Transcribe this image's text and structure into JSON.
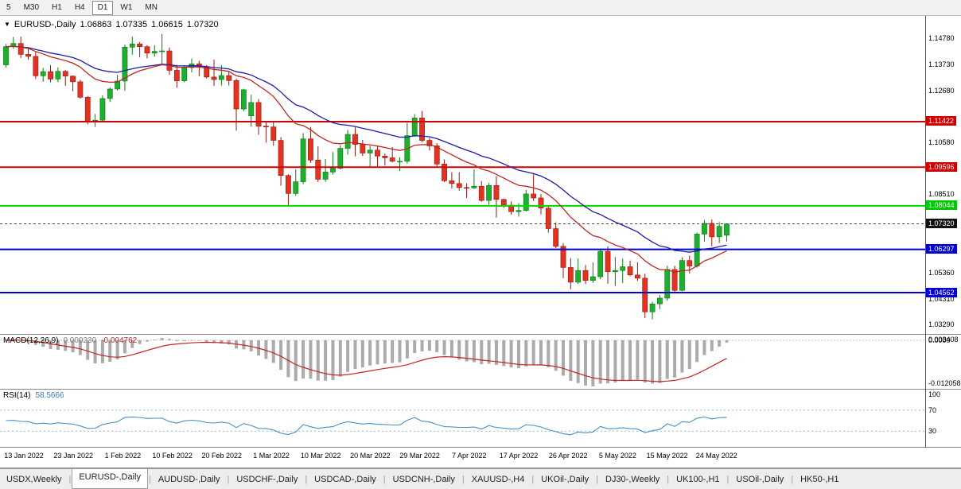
{
  "toolbar": {
    "timeframes": [
      {
        "label": "5",
        "active": false
      },
      {
        "label": "M30",
        "active": false
      },
      {
        "label": "H1",
        "active": false
      },
      {
        "label": "H4",
        "active": false
      },
      {
        "label": "D1",
        "active": true
      },
      {
        "label": "W1",
        "active": false
      },
      {
        "label": "MN",
        "active": false
      }
    ]
  },
  "chart_header": {
    "symbol": "EURUSD-,Daily",
    "open": "1.06863",
    "high": "1.07335",
    "low": "1.06615",
    "close": "1.07320"
  },
  "colors": {
    "up_fill": "#1fae2d",
    "up_stroke": "#0b7a14",
    "down_fill": "#e23222",
    "down_stroke": "#9a170b",
    "ma_fast": "#c22620",
    "ma_slow": "#1c1ca8",
    "macd_hist": "#ababab",
    "macd_signal": "#c22620",
    "rsi_line": "#4a8fc6",
    "rsi_levels": "#9db8d2",
    "current_price_line": "#444444"
  },
  "price_axis": {
    "ticks": [
      {
        "label": "1.14780",
        "price": 1.1478
      },
      {
        "label": "1.13730",
        "price": 1.1373
      },
      {
        "label": "1.12680",
        "price": 1.1268
      },
      {
        "label": "1.10580",
        "price": 1.1058
      },
      {
        "label": "1.08510",
        "price": 1.0851
      },
      {
        "label": "1.05360",
        "price": 1.0536
      },
      {
        "label": "1.04310",
        "price": 1.0431
      },
      {
        "label": "1.03290",
        "price": 1.0329
      }
    ],
    "badges": [
      {
        "label": "1.11422",
        "price": 1.11422,
        "color": "#d10000"
      },
      {
        "label": "1.09596",
        "price": 1.09596,
        "color": "#d10000"
      },
      {
        "label": "1.08044",
        "price": 1.08044,
        "color": "#00c800"
      },
      {
        "label": "1.07320",
        "price": 1.0732,
        "color": "#101010"
      },
      {
        "label": "1.06297",
        "price": 1.06297,
        "color": "#0000d0"
      },
      {
        "label": "1.04562",
        "price": 1.04562,
        "color": "#0000d0"
      }
    ]
  },
  "macd": {
    "name": "MACD(12,26,9)",
    "value_main": "0.000230",
    "value_signal": "-0.004762",
    "axis_top": "0.003408",
    "axis_zero": "0.0000",
    "axis_bottom": "-0.012058"
  },
  "rsi": {
    "name": "RSI(14)",
    "value": "58.5666",
    "axis": [
      {
        "label": "100",
        "value": 100
      },
      {
        "label": "70",
        "value": 70
      },
      {
        "label": "30",
        "value": 30
      }
    ]
  },
  "tabs": [
    {
      "label": "USDX,Weekly",
      "active": false
    },
    {
      "label": "EURUSD-,Daily",
      "active": true
    },
    {
      "label": "AUDUSD-,Daily",
      "active": false
    },
    {
      "label": "USDCHF-,Daily",
      "active": false
    },
    {
      "label": "USDCAD-,Daily",
      "active": false
    },
    {
      "label": "USDCNH-,Daily",
      "active": false
    },
    {
      "label": "XAUUSD-,H4",
      "active": false
    },
    {
      "label": "UKOil-,Daily",
      "active": false
    },
    {
      "label": "DJ30-,Weekly",
      "active": false
    },
    {
      "label": "UK100-,H1",
      "active": false
    },
    {
      "label": "USOil-,Daily",
      "active": false
    },
    {
      "label": "HK50-,H1",
      "active": false
    }
  ],
  "chart_data": {
    "type": "candlestick",
    "symbol": "EURUSD-,Daily",
    "y_range": [
      1.029,
      1.156
    ],
    "x_labels": [
      "13 Jan 2022",
      "23 Jan 2022",
      "1 Feb 2022",
      "10 Feb 2022",
      "20 Feb 2022",
      "1 Mar 2022",
      "10 Mar 2022",
      "20 Mar 2022",
      "29 Mar 2022",
      "7 Apr 2022",
      "17 Apr 2022",
      "26 Apr 2022",
      "5 May 2022",
      "15 May 2022",
      "24 May 2022"
    ],
    "horizontal_lines": [
      {
        "price": 1.11422,
        "color": "#d10000",
        "width": 2,
        "dashed": false
      },
      {
        "price": 1.09596,
        "color": "#d10000",
        "width": 2,
        "dashed": false
      },
      {
        "price": 1.08044,
        "color": "#00d800",
        "width": 2,
        "dashed": false
      },
      {
        "price": 1.06297,
        "color": "#0000d0",
        "width": 2,
        "dashed": false
      },
      {
        "price": 1.04562,
        "color": "#0000d0",
        "width": 2,
        "dashed": false
      }
    ],
    "current_price": 1.0732,
    "indicators": [
      {
        "name": "MACD(12,26,9)",
        "values": "0.000230 -0.004762"
      },
      {
        "name": "RSI(14)",
        "values": "58.5666"
      }
    ],
    "candles": [
      [
        1.137,
        1.1453,
        1.136,
        1.1443
      ],
      [
        1.1443,
        1.1482,
        1.1434,
        1.1456
      ],
      [
        1.1456,
        1.1483,
        1.1398,
        1.1412
      ],
      [
        1.1412,
        1.1436,
        1.139,
        1.1404
      ],
      [
        1.1404,
        1.1422,
        1.1313,
        1.1326
      ],
      [
        1.1326,
        1.1358,
        1.1302,
        1.1343
      ],
      [
        1.1343,
        1.1369,
        1.13,
        1.1313
      ],
      [
        1.1313,
        1.136,
        1.1301,
        1.1344
      ],
      [
        1.1344,
        1.1349,
        1.1286,
        1.1325
      ],
      [
        1.1325,
        1.1327,
        1.1264,
        1.1302
      ],
      [
        1.1302,
        1.131,
        1.1235,
        1.124
      ],
      [
        1.124,
        1.1245,
        1.1131,
        1.1143
      ],
      [
        1.1143,
        1.1173,
        1.1121,
        1.1148
      ],
      [
        1.1148,
        1.1248,
        1.1141,
        1.1235
      ],
      [
        1.1235,
        1.1279,
        1.1221,
        1.1273
      ],
      [
        1.1273,
        1.133,
        1.1267,
        1.1305
      ],
      [
        1.1305,
        1.1451,
        1.1266,
        1.1441
      ],
      [
        1.1441,
        1.1483,
        1.1411,
        1.1454
      ],
      [
        1.1454,
        1.1462,
        1.14,
        1.1443
      ],
      [
        1.1443,
        1.1449,
        1.1396,
        1.1417
      ],
      [
        1.1417,
        1.1448,
        1.1403,
        1.1424
      ],
      [
        1.1424,
        1.1494,
        1.1375,
        1.1426
      ],
      [
        1.1426,
        1.144,
        1.133,
        1.1348
      ],
      [
        1.1348,
        1.137,
        1.1278,
        1.1306
      ],
      [
        1.1306,
        1.1368,
        1.13,
        1.1359
      ],
      [
        1.1359,
        1.1395,
        1.134,
        1.1374
      ],
      [
        1.1374,
        1.1386,
        1.1324,
        1.1361
      ],
      [
        1.1361,
        1.1369,
        1.1315,
        1.1321
      ],
      [
        1.1321,
        1.1391,
        1.1286,
        1.1311
      ],
      [
        1.1311,
        1.1368,
        1.1287,
        1.1327
      ],
      [
        1.1327,
        1.1342,
        1.1287,
        1.1307
      ],
      [
        1.1307,
        1.1315,
        1.1106,
        1.1193
      ],
      [
        1.1193,
        1.1274,
        1.1184,
        1.127
      ],
      [
        1.1165,
        1.125,
        1.1122,
        1.1219
      ],
      [
        1.1219,
        1.1233,
        1.109,
        1.1124
      ],
      [
        1.1124,
        1.1145,
        1.1058,
        1.1121
      ],
      [
        1.1121,
        1.1139,
        1.1045,
        1.1067
      ],
      [
        1.1067,
        1.108,
        1.0885,
        1.0926
      ],
      [
        1.0926,
        1.0931,
        1.0806,
        1.0854
      ],
      [
        1.0854,
        1.095,
        1.0845,
        1.0901
      ],
      [
        1.0901,
        1.1096,
        1.0891,
        1.1073
      ],
      [
        1.1073,
        1.1121,
        1.0977,
        1.0988
      ],
      [
        1.0988,
        1.1043,
        1.09,
        1.0911
      ],
      [
        1.0911,
        1.0992,
        1.0901,
        1.094
      ],
      [
        1.094,
        1.102,
        1.093,
        1.0955
      ],
      [
        1.0955,
        1.1048,
        1.095,
        1.1035
      ],
      [
        1.1035,
        1.1109,
        1.101,
        1.1091
      ],
      [
        1.1091,
        1.1119,
        1.1003,
        1.1051
      ],
      [
        1.1051,
        1.1069,
        1.1004,
        1.1016
      ],
      [
        1.1016,
        1.1046,
        1.0962,
        1.1028
      ],
      [
        1.1028,
        1.1044,
        1.0963,
        1.1004
      ],
      [
        1.1004,
        1.1014,
        1.0966,
        1.0997
      ],
      [
        1.0997,
        1.104,
        1.0979,
        1.0983
      ],
      [
        1.0983,
        1.0999,
        1.0944,
        1.0983
      ],
      [
        1.0983,
        1.1137,
        1.0974,
        1.1086
      ],
      [
        1.1086,
        1.1172,
        1.1082,
        1.1157
      ],
      [
        1.1157,
        1.1185,
        1.106,
        1.1067
      ],
      [
        1.1067,
        1.1077,
        1.1027,
        1.1045
      ],
      [
        1.1045,
        1.1056,
        1.096,
        1.0972
      ],
      [
        1.0972,
        1.0991,
        1.09,
        1.0905
      ],
      [
        1.0905,
        1.0939,
        1.0874,
        1.0894
      ],
      [
        1.0894,
        1.0939,
        1.0865,
        1.0878
      ],
      [
        1.0878,
        1.0895,
        1.0836,
        1.0876
      ],
      [
        1.0876,
        1.095,
        1.0872,
        1.0883
      ],
      [
        1.0883,
        1.0904,
        1.0821,
        1.0826
      ],
      [
        1.0826,
        1.0896,
        1.0809,
        1.0886
      ],
      [
        1.0886,
        1.0924,
        1.0757,
        1.083
      ],
      [
        1.083,
        1.0833,
        1.0796,
        1.0807
      ],
      [
        1.0807,
        1.0822,
        1.0769,
        1.0781
      ],
      [
        1.0781,
        1.0815,
        1.0761,
        1.0786
      ],
      [
        1.0786,
        1.0868,
        1.0782,
        1.0852
      ],
      [
        1.0852,
        1.0936,
        1.0824,
        1.0836
      ],
      [
        1.0836,
        1.0852,
        1.077,
        1.0795
      ],
      [
        1.0795,
        1.0804,
        1.0697,
        1.0713
      ],
      [
        1.0713,
        1.0738,
        1.0635,
        1.0642
      ],
      [
        1.0642,
        1.0655,
        1.0514,
        1.0557
      ],
      [
        1.0557,
        1.0594,
        1.047,
        1.0498
      ],
      [
        1.0498,
        1.0593,
        1.0491,
        1.0545
      ],
      [
        1.0545,
        1.0567,
        1.049,
        1.0505
      ],
      [
        1.0505,
        1.0578,
        1.0495,
        1.052
      ],
      [
        1.052,
        1.0632,
        1.051,
        1.0622
      ],
      [
        1.0622,
        1.0642,
        1.0492,
        1.054
      ],
      [
        1.054,
        1.0599,
        1.0483,
        1.0545
      ],
      [
        1.0545,
        1.0593,
        1.0495,
        1.056
      ],
      [
        1.056,
        1.0585,
        1.0522,
        1.0527
      ],
      [
        1.0527,
        1.0578,
        1.0503,
        1.0514
      ],
      [
        1.0514,
        1.0532,
        1.0354,
        1.0379
      ],
      [
        1.0379,
        1.042,
        1.0349,
        1.0411
      ],
      [
        1.0411,
        1.0447,
        1.039,
        1.0434
      ],
      [
        1.0434,
        1.0564,
        1.0424,
        1.0549
      ],
      [
        1.0549,
        1.0564,
        1.0459,
        1.0465
      ],
      [
        1.0465,
        1.0598,
        1.0461,
        1.0585
      ],
      [
        1.0585,
        1.0604,
        1.0533,
        1.0563
      ],
      [
        1.0563,
        1.0697,
        1.0556,
        1.0691
      ],
      [
        1.0691,
        1.0748,
        1.0661,
        1.0734
      ],
      [
        1.0734,
        1.075,
        1.0642,
        1.068
      ],
      [
        1.068,
        1.0739,
        1.0655,
        1.0722
      ],
      [
        1.06863,
        1.07335,
        1.06615,
        1.0732
      ]
    ]
  }
}
